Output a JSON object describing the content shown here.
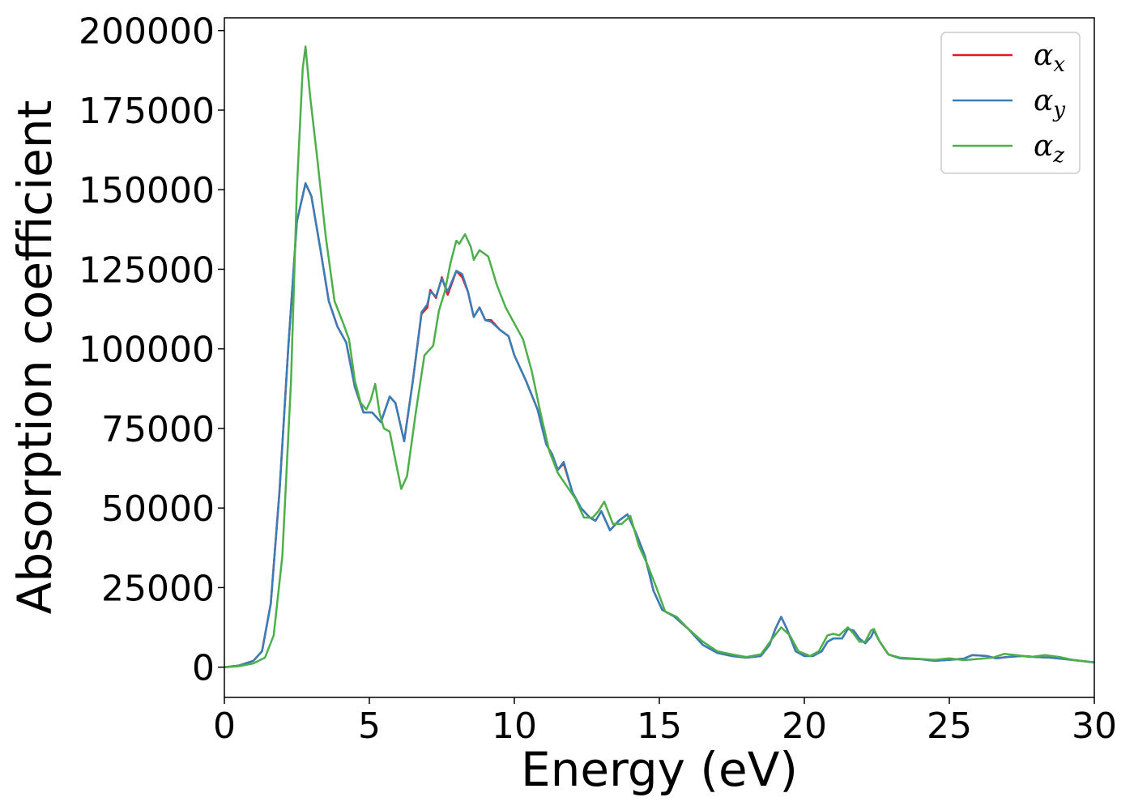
{
  "chart_data": {
    "type": "line",
    "title": "",
    "xlabel": "Energy (eV)",
    "ylabel": "Absorption coefficient",
    "xlim": [
      0,
      30
    ],
    "ylim": [
      -9500,
      204000
    ],
    "xticks": [
      0,
      5,
      10,
      15,
      20,
      25,
      30
    ],
    "yticks": [
      0,
      25000,
      50000,
      75000,
      100000,
      125000,
      150000,
      175000,
      200000
    ],
    "xtick_labels": [
      "0",
      "5",
      "10",
      "15",
      "20",
      "25",
      "30"
    ],
    "ytick_labels": [
      "0",
      "25000",
      "50000",
      "75000",
      "100000",
      "125000",
      "150000",
      "175000",
      "200000"
    ],
    "grid": false,
    "legend_position": "top-right",
    "series": [
      {
        "name": "αx",
        "legend_base": "α",
        "legend_sub": "x",
        "color": "#e41a1c",
        "points": [
          [
            0,
            0
          ],
          [
            0.5,
            500
          ],
          [
            1.0,
            2000
          ],
          [
            1.3,
            5000
          ],
          [
            1.6,
            20000
          ],
          [
            1.9,
            55000
          ],
          [
            2.2,
            100000
          ],
          [
            2.5,
            140000
          ],
          [
            2.8,
            152000
          ],
          [
            3.0,
            148000
          ],
          [
            3.3,
            132000
          ],
          [
            3.6,
            115000
          ],
          [
            3.9,
            107000
          ],
          [
            4.2,
            102000
          ],
          [
            4.5,
            88000
          ],
          [
            4.8,
            80000
          ],
          [
            5.1,
            80000
          ],
          [
            5.4,
            77000
          ],
          [
            5.7,
            85000
          ],
          [
            5.9,
            83000
          ],
          [
            6.2,
            71000
          ],
          [
            6.5,
            90000
          ],
          [
            6.8,
            111000
          ],
          [
            7.0,
            113000
          ],
          [
            7.1,
            118500
          ],
          [
            7.3,
            116000
          ],
          [
            7.5,
            122500
          ],
          [
            7.7,
            117000
          ],
          [
            8.0,
            124500
          ],
          [
            8.2,
            122500
          ],
          [
            8.4,
            118000
          ],
          [
            8.6,
            110000
          ],
          [
            8.8,
            113000
          ],
          [
            9.0,
            109000
          ],
          [
            9.2,
            109000
          ],
          [
            9.5,
            106000
          ],
          [
            9.8,
            104000
          ],
          [
            10.0,
            98000
          ],
          [
            10.4,
            90000
          ],
          [
            10.8,
            81000
          ],
          [
            11.1,
            70000
          ],
          [
            11.3,
            67000
          ],
          [
            11.5,
            62000
          ],
          [
            11.7,
            64000
          ],
          [
            12.0,
            55000
          ],
          [
            12.3,
            50000
          ],
          [
            12.6,
            47000
          ],
          [
            12.8,
            46000
          ],
          [
            13.0,
            49000
          ],
          [
            13.3,
            43000
          ],
          [
            13.6,
            46000
          ],
          [
            13.9,
            48000
          ],
          [
            14.2,
            42000
          ],
          [
            14.5,
            35000
          ],
          [
            14.8,
            24000
          ],
          [
            15.1,
            18000
          ],
          [
            15.5,
            16000
          ],
          [
            16.0,
            12000
          ],
          [
            16.5,
            7000
          ],
          [
            17.0,
            4500
          ],
          [
            17.5,
            3500
          ],
          [
            18.0,
            3000
          ],
          [
            18.5,
            3500
          ],
          [
            18.8,
            7000
          ],
          [
            19.0,
            12000
          ],
          [
            19.2,
            15800
          ],
          [
            19.4,
            12000
          ],
          [
            19.7,
            5000
          ],
          [
            20.0,
            3500
          ],
          [
            20.3,
            3500
          ],
          [
            20.6,
            5000
          ],
          [
            20.8,
            8000
          ],
          [
            21.0,
            9000
          ],
          [
            21.3,
            9000
          ],
          [
            21.5,
            12000
          ],
          [
            21.7,
            11500
          ],
          [
            21.9,
            9000
          ],
          [
            22.1,
            7500
          ],
          [
            22.3,
            9500
          ],
          [
            22.4,
            11500
          ],
          [
            22.6,
            8000
          ],
          [
            22.9,
            4000
          ],
          [
            23.3,
            2800
          ],
          [
            24.0,
            2500
          ],
          [
            24.5,
            2000
          ],
          [
            25.0,
            2300
          ],
          [
            25.5,
            2700
          ],
          [
            25.8,
            3800
          ],
          [
            26.3,
            3500
          ],
          [
            26.6,
            2800
          ],
          [
            27.0,
            3200
          ],
          [
            27.5,
            3500
          ],
          [
            28.0,
            3200
          ],
          [
            28.5,
            3000
          ],
          [
            29.0,
            2500
          ],
          [
            29.5,
            2000
          ],
          [
            30.0,
            1500
          ]
        ]
      },
      {
        "name": "αy",
        "legend_base": "α",
        "legend_sub": "y",
        "color": "#377eb8",
        "points": [
          [
            0,
            0
          ],
          [
            0.5,
            500
          ],
          [
            1.0,
            2000
          ],
          [
            1.3,
            5000
          ],
          [
            1.6,
            20000
          ],
          [
            1.9,
            55000
          ],
          [
            2.2,
            100000
          ],
          [
            2.5,
            140000
          ],
          [
            2.8,
            152000
          ],
          [
            3.0,
            148000
          ],
          [
            3.3,
            132000
          ],
          [
            3.6,
            115000
          ],
          [
            3.9,
            107000
          ],
          [
            4.2,
            102000
          ],
          [
            4.5,
            88000
          ],
          [
            4.8,
            80000
          ],
          [
            5.1,
            80000
          ],
          [
            5.4,
            77000
          ],
          [
            5.7,
            85000
          ],
          [
            5.9,
            83000
          ],
          [
            6.2,
            71000
          ],
          [
            6.5,
            90000
          ],
          [
            6.8,
            111500
          ],
          [
            7.0,
            114000
          ],
          [
            7.1,
            118000
          ],
          [
            7.3,
            116500
          ],
          [
            7.5,
            122000
          ],
          [
            7.7,
            118000
          ],
          [
            8.0,
            124500
          ],
          [
            8.2,
            123500
          ],
          [
            8.4,
            118000
          ],
          [
            8.6,
            110000
          ],
          [
            8.8,
            113000
          ],
          [
            9.0,
            109000
          ],
          [
            9.2,
            108500
          ],
          [
            9.5,
            106000
          ],
          [
            9.8,
            104000
          ],
          [
            10.0,
            98000
          ],
          [
            10.4,
            90000
          ],
          [
            10.8,
            81000
          ],
          [
            11.1,
            70000
          ],
          [
            11.3,
            67000
          ],
          [
            11.5,
            62000
          ],
          [
            11.7,
            64500
          ],
          [
            12.0,
            55000
          ],
          [
            12.3,
            50000
          ],
          [
            12.6,
            47000
          ],
          [
            12.8,
            46000
          ],
          [
            13.0,
            49000
          ],
          [
            13.3,
            43000
          ],
          [
            13.6,
            46000
          ],
          [
            13.9,
            48000
          ],
          [
            14.2,
            42000
          ],
          [
            14.5,
            35000
          ],
          [
            14.8,
            24000
          ],
          [
            15.1,
            18000
          ],
          [
            15.5,
            16000
          ],
          [
            16.0,
            12000
          ],
          [
            16.5,
            7000
          ],
          [
            17.0,
            4500
          ],
          [
            17.5,
            3500
          ],
          [
            18.0,
            3000
          ],
          [
            18.5,
            3500
          ],
          [
            18.8,
            7000
          ],
          [
            19.0,
            12000
          ],
          [
            19.2,
            15800
          ],
          [
            19.4,
            12000
          ],
          [
            19.7,
            5000
          ],
          [
            20.0,
            3500
          ],
          [
            20.3,
            3500
          ],
          [
            20.6,
            5000
          ],
          [
            20.8,
            8000
          ],
          [
            21.0,
            9000
          ],
          [
            21.3,
            9000
          ],
          [
            21.5,
            12000
          ],
          [
            21.7,
            11500
          ],
          [
            21.9,
            9000
          ],
          [
            22.1,
            7500
          ],
          [
            22.3,
            9500
          ],
          [
            22.4,
            11500
          ],
          [
            22.6,
            8000
          ],
          [
            22.9,
            4000
          ],
          [
            23.3,
            2800
          ],
          [
            24.0,
            2500
          ],
          [
            24.5,
            2000
          ],
          [
            25.0,
            2300
          ],
          [
            25.5,
            2700
          ],
          [
            25.8,
            3800
          ],
          [
            26.3,
            3500
          ],
          [
            26.6,
            2800
          ],
          [
            27.0,
            3200
          ],
          [
            27.5,
            3500
          ],
          [
            28.0,
            3200
          ],
          [
            28.5,
            3000
          ],
          [
            29.0,
            2500
          ],
          [
            29.5,
            2000
          ],
          [
            30.0,
            1500
          ]
        ]
      },
      {
        "name": "αz",
        "legend_base": "α",
        "legend_sub": "z",
        "color": "#4daf4a",
        "points": [
          [
            0,
            0
          ],
          [
            0.5,
            300
          ],
          [
            1.0,
            1200
          ],
          [
            1.4,
            3000
          ],
          [
            1.7,
            10000
          ],
          [
            2.0,
            35000
          ],
          [
            2.3,
            90000
          ],
          [
            2.5,
            150000
          ],
          [
            2.7,
            188000
          ],
          [
            2.8,
            195000
          ],
          [
            2.95,
            180000
          ],
          [
            3.2,
            160000
          ],
          [
            3.5,
            135000
          ],
          [
            3.8,
            115000
          ],
          [
            4.1,
            108000
          ],
          [
            4.3,
            103000
          ],
          [
            4.5,
            90000
          ],
          [
            4.7,
            83000
          ],
          [
            4.9,
            81000
          ],
          [
            5.05,
            84000
          ],
          [
            5.2,
            89000
          ],
          [
            5.35,
            80000
          ],
          [
            5.5,
            75000
          ],
          [
            5.7,
            74000
          ],
          [
            5.9,
            65000
          ],
          [
            6.1,
            56000
          ],
          [
            6.3,
            60000
          ],
          [
            6.6,
            80000
          ],
          [
            6.9,
            98000
          ],
          [
            7.2,
            101000
          ],
          [
            7.4,
            112000
          ],
          [
            7.6,
            118000
          ],
          [
            7.8,
            127000
          ],
          [
            8.0,
            134000
          ],
          [
            8.1,
            133000
          ],
          [
            8.3,
            136000
          ],
          [
            8.5,
            132000
          ],
          [
            8.6,
            128000
          ],
          [
            8.8,
            131000
          ],
          [
            9.1,
            129000
          ],
          [
            9.4,
            120000
          ],
          [
            9.7,
            113000
          ],
          [
            10.0,
            108000
          ],
          [
            10.3,
            103000
          ],
          [
            10.6,
            93000
          ],
          [
            10.9,
            80000
          ],
          [
            11.2,
            68000
          ],
          [
            11.5,
            61000
          ],
          [
            11.8,
            57000
          ],
          [
            12.1,
            53000
          ],
          [
            12.4,
            47000
          ],
          [
            12.7,
            47000
          ],
          [
            12.9,
            49000
          ],
          [
            13.1,
            52000
          ],
          [
            13.4,
            45000
          ],
          [
            13.7,
            45000
          ],
          [
            14.0,
            47500
          ],
          [
            14.3,
            38000
          ],
          [
            14.6,
            32000
          ],
          [
            14.9,
            25000
          ],
          [
            15.2,
            17500
          ],
          [
            15.6,
            15800
          ],
          [
            16.0,
            12000
          ],
          [
            16.5,
            8000
          ],
          [
            17.0,
            5000
          ],
          [
            17.5,
            4000
          ],
          [
            18.0,
            3200
          ],
          [
            18.5,
            4000
          ],
          [
            18.9,
            9000
          ],
          [
            19.2,
            12500
          ],
          [
            19.5,
            10000
          ],
          [
            19.8,
            5000
          ],
          [
            20.2,
            3500
          ],
          [
            20.5,
            5000
          ],
          [
            20.8,
            10000
          ],
          [
            21.0,
            10500
          ],
          [
            21.2,
            10000
          ],
          [
            21.5,
            12500
          ],
          [
            21.7,
            10500
          ],
          [
            21.9,
            8000
          ],
          [
            22.1,
            8000
          ],
          [
            22.3,
            11500
          ],
          [
            22.4,
            12000
          ],
          [
            22.6,
            8000
          ],
          [
            22.9,
            4000
          ],
          [
            23.3,
            3000
          ],
          [
            24.0,
            2600
          ],
          [
            24.5,
            2300
          ],
          [
            25.0,
            2800
          ],
          [
            25.5,
            2200
          ],
          [
            26.0,
            2600
          ],
          [
            26.5,
            3000
          ],
          [
            26.9,
            4200
          ],
          [
            27.3,
            3800
          ],
          [
            27.8,
            3200
          ],
          [
            28.3,
            3800
          ],
          [
            28.8,
            3200
          ],
          [
            29.3,
            2200
          ],
          [
            30.0,
            1500
          ]
        ]
      }
    ]
  }
}
